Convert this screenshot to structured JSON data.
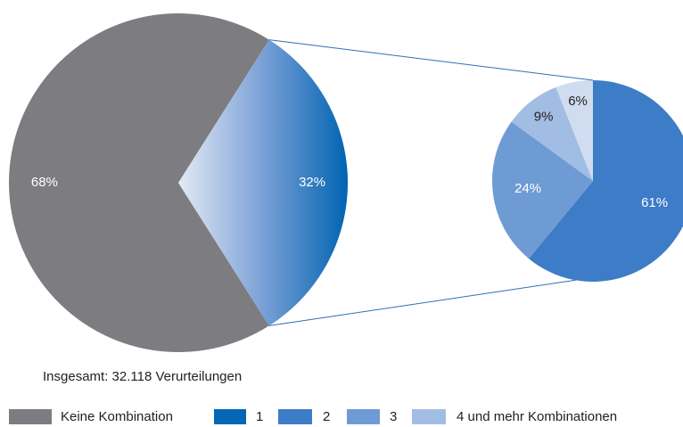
{
  "chart_data": {
    "type": "pie_of_pie",
    "main": {
      "values": [
        68,
        32
      ],
      "value_labels": [
        "68%",
        "32%"
      ],
      "colors": [
        "#7d7c80",
        "url(#grad)"
      ]
    },
    "secondary": {
      "values": [
        61,
        24,
        9,
        6
      ],
      "value_labels": [
        "61%",
        "24%",
        "9%",
        "6%"
      ],
      "colors": [
        "#3d7cc6",
        "#6f9bd4",
        "#a2bde3",
        "#d0dcef"
      ]
    },
    "annotation": "Insgesamt: 32.118 Verurteilungen",
    "legend": [
      {
        "name": "Keine Kombination",
        "color": "#7d7c80"
      },
      {
        "name": "1",
        "color": "#0567b4"
      },
      {
        "name": "2",
        "color": "#3d7cc6"
      },
      {
        "name": "3",
        "color": "#6f9bd4"
      },
      {
        "name": "4 und mehr Kombinationen",
        "color": "#a2bde3"
      }
    ]
  }
}
